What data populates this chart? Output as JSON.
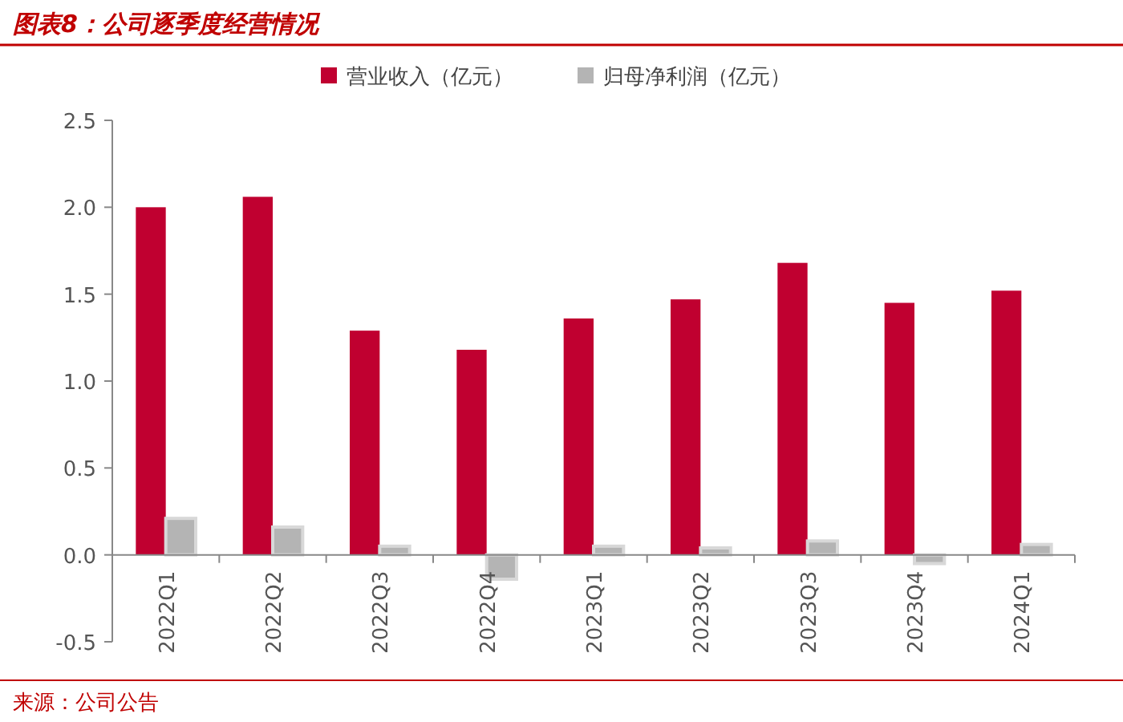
{
  "chart_data": {
    "type": "bar",
    "title": "图表8：公司逐季度经营情况",
    "categories": [
      "2022Q1",
      "2022Q2",
      "2022Q3",
      "2022Q4",
      "2023Q1",
      "2023Q2",
      "2023Q3",
      "2023Q4",
      "2024Q1"
    ],
    "series": [
      {
        "name": "营业收入（亿元）",
        "color": "#c00030",
        "values": [
          2.0,
          2.06,
          1.29,
          1.18,
          1.36,
          1.47,
          1.68,
          1.45,
          1.52
        ]
      },
      {
        "name": "归母净利润（亿元）",
        "color": "#b4b4b4",
        "values": [
          0.21,
          0.16,
          0.05,
          -0.14,
          0.05,
          0.04,
          0.08,
          -0.05,
          0.06
        ]
      }
    ],
    "ylim": [
      -0.5,
      2.5
    ],
    "yticks": [
      {
        "value": -0.5,
        "label": "-0.5"
      },
      {
        "value": 0,
        "label": "0.0"
      },
      {
        "value": 0.5,
        "label": "0.5"
      },
      {
        "value": 1,
        "label": "1.0"
      },
      {
        "value": 1.5,
        "label": "1.5"
      },
      {
        "value": 2,
        "label": "2.0"
      },
      {
        "value": 2.5,
        "label": "2.5"
      }
    ],
    "legend": "top",
    "grid": false,
    "annotations": [
      "来源：公司公告"
    ]
  }
}
